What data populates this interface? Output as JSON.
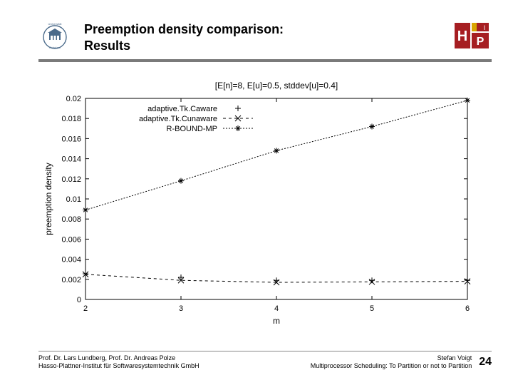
{
  "header": {
    "title_line1": "Preemption density comparison:",
    "title_line2": "Results"
  },
  "chart": {
    "type": "line",
    "title": "[E[n]=8, E[u]=0.5, stddev[u]=0.4]",
    "xlabel": "m",
    "ylabel": "preemption density",
    "xlim": [
      2,
      6
    ],
    "ylim": [
      0,
      0.02
    ],
    "xticks": [
      2,
      3,
      4,
      5,
      6
    ],
    "yticks": [
      0,
      0.002,
      0.004,
      0.006,
      0.008,
      0.01,
      0.012,
      0.014,
      0.016,
      0.018,
      0.02
    ],
    "plot_box_color": "#000000",
    "tick_len": 5,
    "background_color": "#ffffff",
    "series": [
      {
        "name": "adaptive.Tk.Caware",
        "marker": "plus",
        "dash": "none",
        "color": "#000000",
        "x": [
          2,
          3,
          4,
          5,
          6
        ],
        "y": [
          0.00255,
          0.0022,
          0.0019,
          0.0019,
          0.0019
        ]
      },
      {
        "name": "adaptive.Tk.Cunaware",
        "marker": "x",
        "dash": "4,4",
        "color": "#000000",
        "x": [
          2,
          3,
          4,
          5,
          6
        ],
        "y": [
          0.0025,
          0.0019,
          0.0017,
          0.00175,
          0.0018
        ]
      },
      {
        "name": "R-BOUND-MP",
        "marker": "star",
        "dash": "2,2",
        "color": "#000000",
        "x": [
          2,
          3,
          4,
          5,
          6
        ],
        "y": [
          0.0089,
          0.0118,
          0.0148,
          0.0172,
          0.0198
        ]
      }
    ],
    "legend": {
      "position": "top-right-inside",
      "entries": [
        "adaptive.Tk.Caware",
        "adaptive.Tk.Cunaware",
        "R-BOUND-MP"
      ]
    }
  },
  "footer": {
    "left_line1": "Prof. Dr. Lars Lundberg,  Prof. Dr. Andreas Polze",
    "left_line2": "Hasso-Plattner-Institut für Softwaresystemtechnik GmbH",
    "right_line1": "Stefan Voigt",
    "right_line2": "Multiprocessor Scheduling: To Partition or not to Partition",
    "page": "24"
  },
  "colors": {
    "rule": "#7a7a7a",
    "hpi_red": "#a61e22",
    "hpi_yellow": "#d9a400",
    "uni_blue": "#4a6a8a"
  }
}
